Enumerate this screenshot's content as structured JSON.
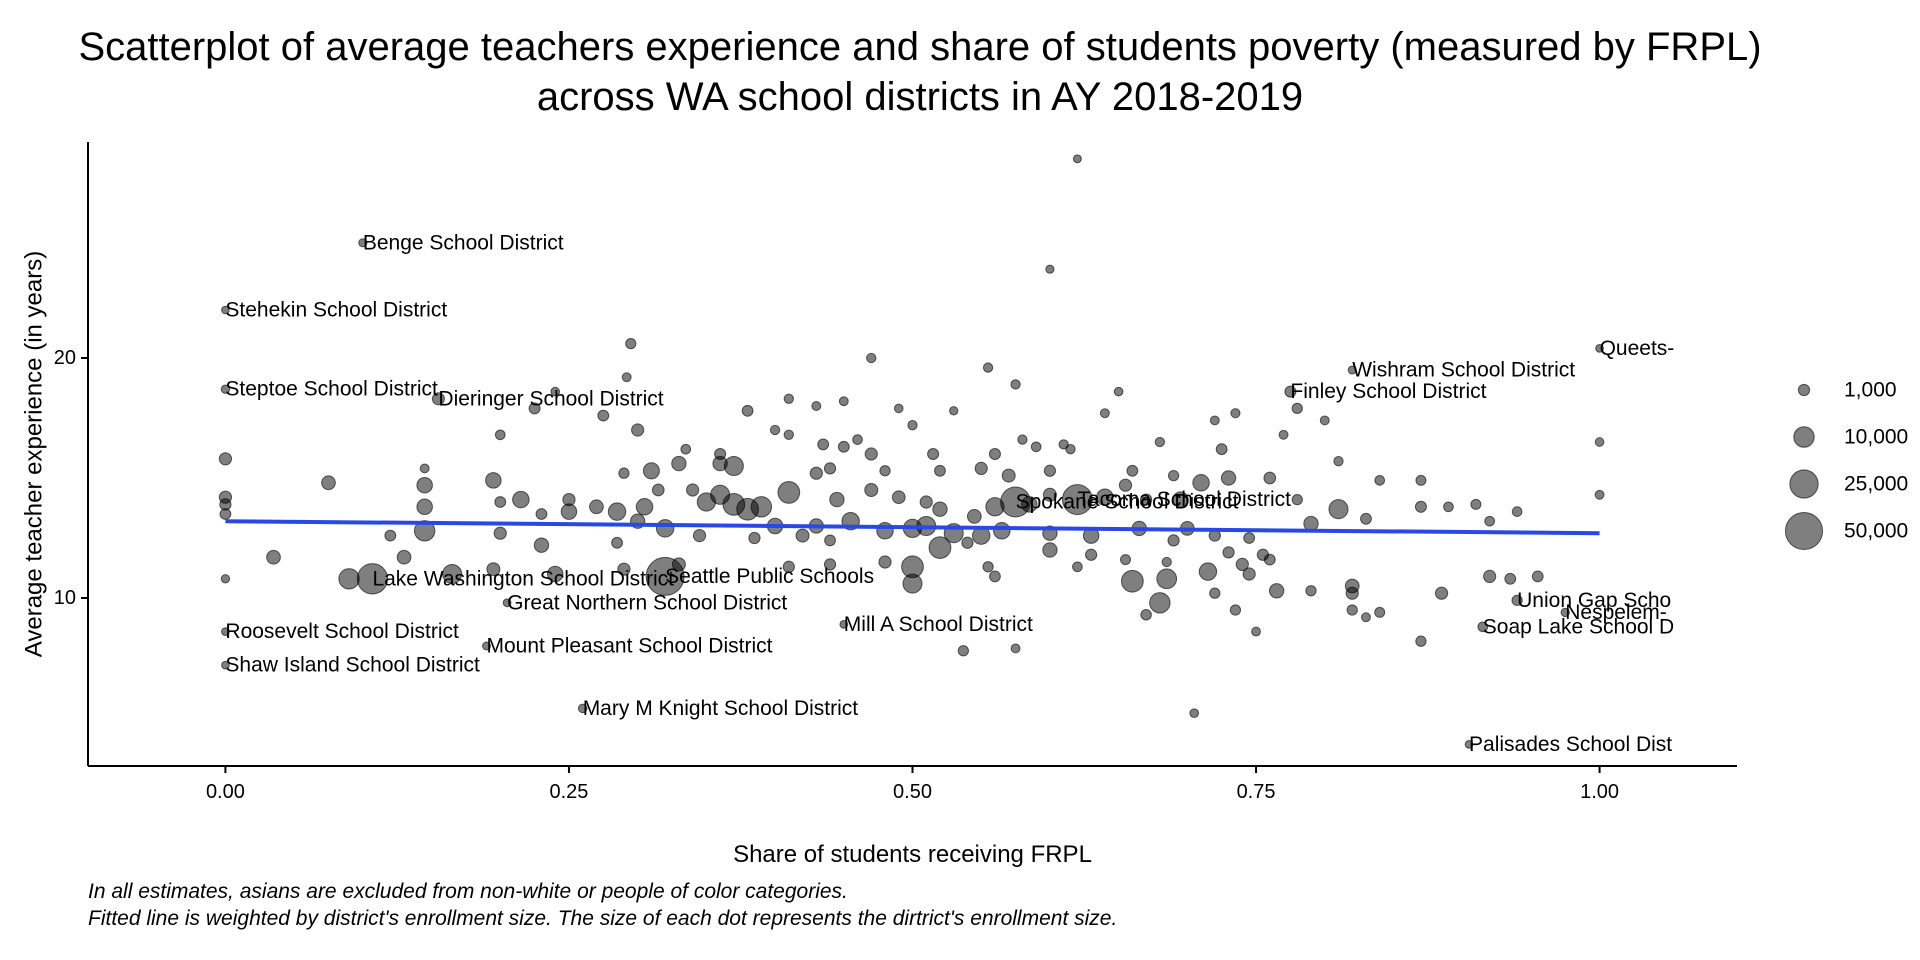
{
  "chart_data": {
    "type": "scatter",
    "title_lines": [
      "Scatterplot of average teachers experience and share of students poverty (measured by FRPL)",
      "across WA school districts in AY 2018-2019"
    ],
    "xlabel": "Share of students receiving FRPL",
    "ylabel": "Average teacher experience (in years)",
    "xlim": [
      -0.1,
      1.1
    ],
    "ylim": [
      3.0,
      29.0
    ],
    "xticks": [
      0.0,
      0.25,
      0.5,
      0.75,
      1.0
    ],
    "xtick_labels": [
      "0.00",
      "0.25",
      "0.50",
      "0.75",
      "1.00"
    ],
    "yticks": [
      10,
      20
    ],
    "ytick_labels": [
      "10",
      "20"
    ],
    "grid": false,
    "point_color": "#000000",
    "point_opacity": 0.5,
    "trend_line": {
      "color": "#2a48e6",
      "x": [
        0.0,
        1.0
      ],
      "y": [
        13.2,
        12.7
      ]
    },
    "legend": {
      "position": "right",
      "items": [
        {
          "label": "1,000",
          "value": 1000
        },
        {
          "label": "10,000",
          "value": 10000
        },
        {
          "label": "25,000",
          "value": 25000
        },
        {
          "label": "50,000",
          "value": 50000
        }
      ]
    },
    "labeled_points": [
      {
        "label": "Benge School District",
        "x": 0.1,
        "y": 24.8,
        "size": 80
      },
      {
        "label": "Stehekin School District",
        "x": 0.0,
        "y": 22.0,
        "size": 20
      },
      {
        "label": "Steptoe School District",
        "x": 0.0,
        "y": 18.7,
        "size": 100
      },
      {
        "label": "Dieringer School District",
        "x": 0.155,
        "y": 18.3,
        "size": 1400
      },
      {
        "label": "Lake Washington School District",
        "x": 0.107,
        "y": 10.8,
        "size": 30000
      },
      {
        "label": "Seattle Public Schools",
        "x": 0.32,
        "y": 10.9,
        "size": 53000
      },
      {
        "label": "Great Northern School District",
        "x": 0.205,
        "y": 9.8,
        "size": 40
      },
      {
        "label": "Roosevelt School District",
        "x": 0.0,
        "y": 8.6,
        "size": 30
      },
      {
        "label": "Mount Pleasant School District",
        "x": 0.19,
        "y": 8.0,
        "size": 50
      },
      {
        "label": "Shaw Island School District",
        "x": 0.0,
        "y": 7.2,
        "size": 20
      },
      {
        "label": "Mary M Knight School District",
        "x": 0.26,
        "y": 5.4,
        "size": 150
      },
      {
        "label": "Mill A School District",
        "x": 0.45,
        "y": 8.9,
        "size": 30
      },
      {
        "label": "Spokane School District",
        "x": 0.575,
        "y": 14.0,
        "size": 29000
      },
      {
        "label": "Tacoma School District",
        "x": 0.62,
        "y": 14.1,
        "size": 29000
      },
      {
        "label": "Wishram School District",
        "x": 0.82,
        "y": 19.5,
        "size": 60
      },
      {
        "label": "Finley School District",
        "x": 0.775,
        "y": 18.6,
        "size": 900
      },
      {
        "label": "Queets-",
        "x": 1.0,
        "y": 20.4,
        "size": 30
      },
      {
        "label": "Union Gap Scho",
        "x": 0.94,
        "y": 9.9,
        "size": 600
      },
      {
        "label": "Nespelem-",
        "x": 0.975,
        "y": 9.4,
        "size": 100
      },
      {
        "label": "Soap Lake School D",
        "x": 0.915,
        "y": 8.8,
        "size": 400
      },
      {
        "label": "Palisades School Dist",
        "x": 0.905,
        "y": 3.9,
        "size": 30
      }
    ],
    "points": [
      [
        0.62,
        28.3,
        50
      ],
      [
        0.6,
        23.7,
        80
      ],
      [
        0.295,
        20.6,
        600
      ],
      [
        0.47,
        20.0,
        300
      ],
      [
        0.555,
        19.6,
        300
      ],
      [
        0.292,
        19.2,
        200
      ],
      [
        0.575,
        18.9,
        300
      ],
      [
        0.24,
        18.6,
        150
      ],
      [
        0.65,
        18.6,
        150
      ],
      [
        0.78,
        17.9,
        600
      ],
      [
        0.8,
        17.4,
        200
      ],
      [
        0.72,
        17.4,
        200
      ],
      [
        0.41,
        18.3,
        300
      ],
      [
        0.43,
        18.0,
        200
      ],
      [
        0.45,
        18.2,
        200
      ],
      [
        0.49,
        17.9,
        150
      ],
      [
        0.53,
        17.8,
        100
      ],
      [
        0.64,
        17.7,
        200
      ],
      [
        0.735,
        17.7,
        250
      ],
      [
        0.38,
        17.8,
        800
      ],
      [
        0.225,
        17.9,
        900
      ],
      [
        0.275,
        17.6,
        800
      ],
      [
        0.3,
        17.0,
        1500
      ],
      [
        0.4,
        17.0,
        300
      ],
      [
        0.41,
        16.8,
        300
      ],
      [
        0.46,
        16.6,
        400
      ],
      [
        0.5,
        17.2,
        300
      ],
      [
        0.58,
        16.6,
        300
      ],
      [
        0.59,
        16.3,
        400
      ],
      [
        0.61,
        16.4,
        300
      ],
      [
        0.68,
        16.5,
        300
      ],
      [
        0.725,
        16.2,
        800
      ],
      [
        0.77,
        16.8,
        200
      ],
      [
        0.81,
        15.7,
        300
      ],
      [
        1.0,
        16.5,
        150
      ],
      [
        0.435,
        16.4,
        800
      ],
      [
        0.45,
        16.3,
        800
      ],
      [
        0.47,
        16.0,
        1500
      ],
      [
        0.515,
        16.0,
        900
      ],
      [
        0.56,
        16.0,
        900
      ],
      [
        0.615,
        16.2,
        300
      ],
      [
        0.335,
        16.2,
        400
      ],
      [
        0.36,
        16.0,
        900
      ],
      [
        0.145,
        15.4,
        200
      ],
      [
        0.2,
        16.8,
        400
      ],
      [
        0.0,
        15.8,
        1500
      ],
      [
        0.075,
        14.8,
        2500
      ],
      [
        0.195,
        14.9,
        4000
      ],
      [
        0.29,
        15.2,
        600
      ],
      [
        0.31,
        15.3,
        4500
      ],
      [
        0.33,
        15.6,
        3000
      ],
      [
        0.36,
        15.6,
        3000
      ],
      [
        0.37,
        15.5,
        8000
      ],
      [
        0.43,
        15.2,
        1500
      ],
      [
        0.44,
        15.4,
        1000
      ],
      [
        0.48,
        15.3,
        600
      ],
      [
        0.52,
        15.3,
        800
      ],
      [
        0.55,
        15.4,
        1500
      ],
      [
        0.57,
        15.1,
        2000
      ],
      [
        0.6,
        15.3,
        1000
      ],
      [
        0.66,
        15.3,
        800
      ],
      [
        0.69,
        15.1,
        600
      ],
      [
        0.73,
        15.0,
        3000
      ],
      [
        0.76,
        15.0,
        1200
      ],
      [
        0.84,
        14.9,
        400
      ],
      [
        0.87,
        14.9,
        500
      ],
      [
        0.0,
        14.2,
        1500
      ],
      [
        0.0,
        13.9,
        1000
      ],
      [
        0.0,
        13.5,
        800
      ],
      [
        0.145,
        14.7,
        4000
      ],
      [
        0.145,
        13.8,
        4000
      ],
      [
        0.145,
        12.8,
        10000
      ],
      [
        0.215,
        14.1,
        5000
      ],
      [
        0.25,
        14.1,
        1500
      ],
      [
        0.27,
        13.8,
        2500
      ],
      [
        0.285,
        13.6,
        6000
      ],
      [
        0.25,
        13.6,
        4000
      ],
      [
        0.305,
        13.8,
        5000
      ],
      [
        0.315,
        14.5,
        1200
      ],
      [
        0.34,
        14.5,
        1500
      ],
      [
        0.35,
        14.0,
        7000
      ],
      [
        0.36,
        14.3,
        8000
      ],
      [
        0.37,
        13.9,
        12000
      ],
      [
        0.38,
        13.7,
        12000
      ],
      [
        0.39,
        13.8,
        10000
      ],
      [
        0.41,
        14.4,
        12000
      ],
      [
        0.445,
        14.1,
        3000
      ],
      [
        0.47,
        14.5,
        2000
      ],
      [
        0.49,
        14.2,
        1800
      ],
      [
        0.51,
        14.0,
        1500
      ],
      [
        0.52,
        13.7,
        3000
      ],
      [
        0.545,
        13.4,
        2500
      ],
      [
        0.56,
        13.8,
        7000
      ],
      [
        0.585,
        13.9,
        4000
      ],
      [
        0.6,
        14.3,
        2000
      ],
      [
        0.64,
        14.2,
        5000
      ],
      [
        0.655,
        14.7,
        1500
      ],
      [
        0.67,
        14.1,
        1000
      ],
      [
        0.695,
        14.1,
        4000
      ],
      [
        0.71,
        14.8,
        5000
      ],
      [
        0.78,
        14.1,
        600
      ],
      [
        0.81,
        13.7,
        8000
      ],
      [
        0.87,
        13.8,
        900
      ],
      [
        0.89,
        13.8,
        400
      ],
      [
        0.91,
        13.9,
        500
      ],
      [
        0.94,
        13.6,
        400
      ],
      [
        1.0,
        14.3,
        200
      ],
      [
        0.2,
        14.0,
        800
      ],
      [
        0.23,
        13.5,
        800
      ],
      [
        0.3,
        13.2,
        3000
      ],
      [
        0.32,
        12.9,
        6000
      ],
      [
        0.4,
        13.0,
        4000
      ],
      [
        0.43,
        13.0,
        3000
      ],
      [
        0.455,
        13.2,
        6000
      ],
      [
        0.48,
        12.8,
        5000
      ],
      [
        0.5,
        12.9,
        7000
      ],
      [
        0.51,
        13.0,
        8000
      ],
      [
        0.53,
        12.7,
        8000
      ],
      [
        0.55,
        12.6,
        6000
      ],
      [
        0.565,
        12.8,
        5000
      ],
      [
        0.6,
        12.7,
        3000
      ],
      [
        0.63,
        12.6,
        4000
      ],
      [
        0.665,
        12.9,
        3000
      ],
      [
        0.7,
        12.9,
        2500
      ],
      [
        0.72,
        12.6,
        1000
      ],
      [
        0.745,
        12.5,
        800
      ],
      [
        0.79,
        13.1,
        3000
      ],
      [
        0.83,
        13.3,
        800
      ],
      [
        0.92,
        13.2,
        400
      ],
      [
        0.12,
        12.6,
        800
      ],
      [
        0.2,
        12.7,
        1500
      ],
      [
        0.23,
        12.2,
        3000
      ],
      [
        0.285,
        12.3,
        800
      ],
      [
        0.345,
        12.6,
        1500
      ],
      [
        0.385,
        12.5,
        1000
      ],
      [
        0.42,
        12.6,
        2000
      ],
      [
        0.44,
        12.4,
        800
      ],
      [
        0.52,
        12.1,
        12000
      ],
      [
        0.54,
        12.3,
        1000
      ],
      [
        0.6,
        12.0,
        3000
      ],
      [
        0.63,
        11.8,
        1000
      ],
      [
        0.69,
        12.4,
        1000
      ],
      [
        0.73,
        11.9,
        1000
      ],
      [
        0.755,
        11.8,
        1000
      ],
      [
        0.035,
        11.7,
        2500
      ],
      [
        0.13,
        11.7,
        2500
      ],
      [
        0.165,
        11.0,
        8000
      ],
      [
        0.195,
        11.2,
        2000
      ],
      [
        0.24,
        11.0,
        4000
      ],
      [
        0.29,
        11.2,
        1500
      ],
      [
        0.33,
        11.4,
        2000
      ],
      [
        0.41,
        11.3,
        1000
      ],
      [
        0.44,
        11.4,
        1000
      ],
      [
        0.48,
        11.5,
        1500
      ],
      [
        0.5,
        11.3,
        12000
      ],
      [
        0.555,
        11.3,
        600
      ],
      [
        0.62,
        11.3,
        400
      ],
      [
        0.655,
        11.6,
        500
      ],
      [
        0.685,
        11.5,
        300
      ],
      [
        0.715,
        11.1,
        6000
      ],
      [
        0.74,
        11.4,
        1500
      ],
      [
        0.76,
        11.6,
        800
      ],
      [
        0.09,
        10.8,
        10000
      ],
      [
        0.5,
        10.6,
        8000
      ],
      [
        0.56,
        10.9,
        800
      ],
      [
        0.66,
        10.7,
        12000
      ],
      [
        0.685,
        10.8,
        9000
      ],
      [
        0.745,
        11.0,
        1500
      ],
      [
        0.765,
        10.3,
        3000
      ],
      [
        0.79,
        10.3,
        600
      ],
      [
        0.82,
        10.5,
        2500
      ],
      [
        0.885,
        10.2,
        1500
      ],
      [
        0.92,
        10.9,
        1500
      ],
      [
        0.935,
        10.8,
        800
      ],
      [
        0.955,
        10.9,
        800
      ],
      [
        0.0,
        10.8,
        100
      ],
      [
        0.72,
        10.2,
        600
      ],
      [
        0.82,
        10.2,
        1500
      ],
      [
        0.82,
        9.5,
        600
      ],
      [
        0.83,
        9.2,
        200
      ],
      [
        0.84,
        9.4,
        500
      ],
      [
        0.68,
        9.8,
        10000
      ],
      [
        0.67,
        9.3,
        700
      ],
      [
        0.735,
        9.5,
        600
      ],
      [
        0.75,
        8.6,
        200
      ],
      [
        0.87,
        8.2,
        600
      ],
      [
        0.537,
        7.8,
        600
      ],
      [
        0.575,
        7.9,
        200
      ],
      [
        0.705,
        5.2,
        150
      ]
    ]
  },
  "captions": [
    "In all estimates, asians are excluded from non-white or people of color categories.",
    "Fitted line is weighted by district's enrollment size. The size of each dot represents the dirtrict's enrollment size."
  ]
}
